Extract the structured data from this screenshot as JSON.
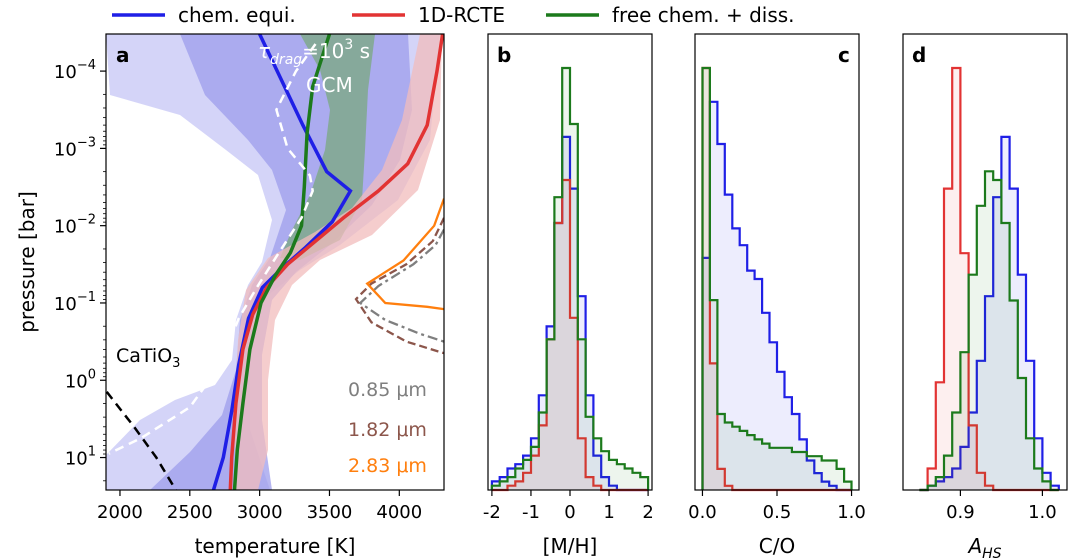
{
  "legend": {
    "location": "top-center, above panels",
    "entries": [
      {
        "label": "chem. equi.",
        "color": "#1f1fe6"
      },
      {
        "label": "1D-RCTE",
        "color": "#e23333"
      },
      {
        "label": "free chem. + diss.",
        "color": "#1c7a1c"
      }
    ]
  },
  "chart_data": [
    {
      "type": "line",
      "panel": "a",
      "xlabel": "temperature [K]",
      "ylabel": "pressure [bar]",
      "xlim": [
        1900,
        4320
      ],
      "ylim_log10": [
        1.42,
        -4.48
      ],
      "yscale": "log",
      "yinverted": true,
      "x_ticks": [
        2000,
        2500,
        3000,
        3500,
        4000
      ],
      "x_tick_labels": [
        "2000",
        "2500",
        "3000",
        "3500",
        "4000"
      ],
      "y_ticks_log10": [
        -4,
        -3,
        -2,
        -1,
        0,
        1
      ],
      "annotations": {
        "gcm_tau": "τ",
        "gcm_tau_sub": "drag",
        "gcm_tau_eq": "=10",
        "gcm_tau_exp": "3",
        "gcm_tau_unit": " s",
        "gcm": "GCM",
        "catio": "CaTiO",
        "catio_sub": "3"
      },
      "wavelength_labels": [
        {
          "label": "0.85 μm",
          "color": "#7f7f7f"
        },
        {
          "label": "1.82 μm",
          "color": "#8c564b"
        },
        {
          "label": "2.83 μm",
          "color": "#ff7f0e"
        }
      ],
      "series": [
        {
          "name": "chem. equi.",
          "color": "#1f1fe6",
          "points": [
            [
              3000,
              -4.48
            ],
            [
              3310,
              -3.3
            ],
            [
              3480,
              -2.7
            ],
            [
              3650,
              -2.45
            ],
            [
              3520,
              -2.05
            ],
            [
              3330,
              -1.72
            ],
            [
              3160,
              -1.45
            ],
            [
              3020,
              -1.2
            ],
            [
              2920,
              -0.8
            ],
            [
              2850,
              -0.2
            ],
            [
              2800,
              0.4
            ],
            [
              2740,
              1.0
            ],
            [
              2670,
              1.42
            ]
          ]
        },
        {
          "name": "1D-RCTE",
          "color": "#e23333",
          "points": [
            [
              4310,
              -4.48
            ],
            [
              4270,
              -4.0
            ],
            [
              4200,
              -3.3
            ],
            [
              4060,
              -2.8
            ],
            [
              3850,
              -2.45
            ],
            [
              3600,
              -2.1
            ],
            [
              3400,
              -1.8
            ],
            [
              3200,
              -1.5
            ],
            [
              3050,
              -1.2
            ],
            [
              2950,
              -0.85
            ],
            [
              2880,
              -0.4
            ],
            [
              2830,
              0.3
            ],
            [
              2800,
              1.0
            ],
            [
              2790,
              1.42
            ]
          ]
        },
        {
          "name": "free chem. + diss.",
          "color": "#1c7a1c",
          "points": [
            [
              3500,
              -4.48
            ],
            [
              3380,
              -3.8
            ],
            [
              3340,
              -3.2
            ],
            [
              3320,
              -2.5
            ],
            [
              3300,
              -2.0
            ],
            [
              3220,
              -1.65
            ],
            [
              3110,
              -1.35
            ],
            [
              3010,
              -1.0
            ],
            [
              2930,
              -0.4
            ],
            [
              2880,
              0.3
            ],
            [
              2840,
              0.9
            ],
            [
              2820,
              1.42
            ]
          ]
        },
        {
          "name": "",
          "color": "#ffffff",
          "points": [
            [
              3400,
              -4.35
            ],
            [
              3260,
              -4.0
            ],
            [
              3120,
              -3.5
            ],
            [
              3200,
              -3.0
            ],
            [
              3360,
              -2.65
            ],
            [
              3380,
              -2.45
            ],
            [
              3300,
              -2.1
            ],
            [
              3120,
              -1.6
            ],
            [
              2980,
              -1.2
            ],
            [
              2850,
              -0.8
            ],
            [
              2720,
              -0.2
            ],
            [
              2500,
              0.35
            ],
            [
              2150,
              0.75
            ],
            [
              1920,
              0.95
            ]
          ]
        },
        {
          "name": "",
          "color": "#000000",
          "points": [
            [
              1905,
              0.15
            ],
            [
              2100,
              0.6
            ],
            [
              2260,
              1.0
            ],
            [
              2400,
              1.42
            ]
          ]
        }
      ],
      "contribution_functions": [
        {
          "name": "0.85 μm",
          "color": "#7f7f7f",
          "points": [
            [
              4320,
              -1.95
            ],
            [
              4260,
              -1.75
            ],
            [
              4100,
              -1.5
            ],
            [
              3850,
              -1.22
            ],
            [
              3720,
              -1.0
            ],
            [
              3900,
              -0.78
            ],
            [
              4150,
              -0.6
            ],
            [
              4320,
              -0.5
            ]
          ]
        },
        {
          "name": "1.82 μm",
          "color": "#8c564b",
          "points": [
            [
              4320,
              -2.1
            ],
            [
              4240,
              -1.8
            ],
            [
              4050,
              -1.5
            ],
            [
              3800,
              -1.25
            ],
            [
              3690,
              -1.05
            ],
            [
              3800,
              -0.75
            ],
            [
              4050,
              -0.5
            ],
            [
              4320,
              -0.35
            ]
          ]
        },
        {
          "name": "2.83 μm",
          "color": "#ff7f0e",
          "points": [
            [
              4320,
              -2.35
            ],
            [
              4250,
              -2.0
            ],
            [
              4030,
              -1.55
            ],
            [
              3770,
              -1.25
            ],
            [
              3900,
              -1.0
            ],
            [
              4200,
              -0.95
            ],
            [
              4320,
              -0.92
            ]
          ]
        }
      ]
    },
    {
      "type": "histogram",
      "panel": "b",
      "xlabel": "[M/H]",
      "xlim": [
        -2.1,
        2.1
      ],
      "x_ticks": [
        -2,
        -1,
        0,
        1,
        2
      ],
      "x_tick_labels": [
        "-2",
        "-1",
        "0",
        "1",
        "2"
      ],
      "bin_edges": [
        -2.0,
        -1.8,
        -1.6,
        -1.4,
        -1.2,
        -1.0,
        -0.8,
        -0.6,
        -0.4,
        -0.2,
        0.0,
        0.2,
        0.4,
        0.6,
        0.8,
        1.0,
        1.2,
        1.4,
        1.6,
        1.8,
        2.0
      ],
      "series": [
        {
          "name": "chem. equi.",
          "color": "#1f1fe6",
          "values": [
            0.02,
            0.03,
            0.05,
            0.06,
            0.08,
            0.12,
            0.22,
            0.38,
            0.62,
            0.82,
            0.7,
            0.45,
            0.22,
            0.08,
            0.03,
            0.01,
            0,
            0,
            0,
            0
          ]
        },
        {
          "name": "1D-RCTE",
          "color": "#e23333",
          "values": [
            0,
            0,
            0.01,
            0.02,
            0.04,
            0.08,
            0.15,
            0.35,
            0.62,
            0.72,
            0.4,
            0.12,
            0.03,
            0.01,
            0,
            0,
            0,
            0,
            0,
            0
          ]
        },
        {
          "name": "free chem. + diss.",
          "color": "#1c7a1c",
          "values": [
            0.01,
            0.02,
            0.03,
            0.05,
            0.07,
            0.1,
            0.18,
            0.35,
            0.68,
            0.98,
            0.85,
            0.35,
            0.17,
            0.12,
            0.09,
            0.07,
            0.06,
            0.05,
            0.04,
            0.03
          ]
        }
      ]
    },
    {
      "type": "histogram",
      "panel": "c",
      "xlabel": "C/O",
      "xlim": [
        -0.05,
        1.05
      ],
      "x_ticks": [
        0.0,
        0.5,
        1.0
      ],
      "x_tick_labels": [
        "0.0",
        "0.5",
        "1.0"
      ],
      "bin_edges": [
        0.0,
        0.05,
        0.1,
        0.15,
        0.2,
        0.25,
        0.3,
        0.35,
        0.4,
        0.45,
        0.5,
        0.55,
        0.6,
        0.65,
        0.7,
        0.75,
        0.8,
        0.85,
        0.9,
        0.95,
        1.0
      ],
      "series": [
        {
          "name": "chem. equi.",
          "color": "#1f1fe6",
          "values": [
            0.55,
            0.92,
            0.82,
            0.7,
            0.62,
            0.58,
            0.52,
            0.5,
            0.42,
            0.35,
            0.28,
            0.22,
            0.18,
            0.12,
            0.07,
            0.04,
            0.02,
            0.01,
            0,
            0
          ]
        },
        {
          "name": "1D-RCTE",
          "color": "#e23333",
          "values": [
            1.0,
            0.3,
            0.05,
            0.01,
            0,
            0,
            0,
            0,
            0,
            0,
            0,
            0,
            0,
            0,
            0,
            0,
            0,
            0,
            0,
            0
          ]
        },
        {
          "name": "free chem. + diss.",
          "color": "#1c7a1c",
          "values": [
            1.0,
            0.45,
            0.18,
            0.16,
            0.15,
            0.14,
            0.13,
            0.12,
            0.11,
            0.1,
            0.1,
            0.1,
            0.09,
            0.09,
            0.08,
            0.08,
            0.07,
            0.07,
            0.05,
            0.02
          ]
        }
      ]
    },
    {
      "type": "histogram",
      "panel": "d",
      "xlabel": "A",
      "xlabel_sub": "HS",
      "xlim": [
        0.83,
        1.03
      ],
      "x_ticks": [
        0.9,
        1.0
      ],
      "x_tick_labels": [
        "0.9",
        "1.0"
      ],
      "bin_edges": [
        0.85,
        0.86,
        0.87,
        0.88,
        0.89,
        0.9,
        0.91,
        0.92,
        0.93,
        0.94,
        0.95,
        0.96,
        0.97,
        0.98,
        0.99,
        1.0,
        1.01,
        1.02
      ],
      "series": [
        {
          "name": "chem. equi.",
          "color": "#1f1fe6",
          "values": [
            0,
            0.01,
            0.02,
            0.03,
            0.05,
            0.1,
            0.18,
            0.3,
            0.45,
            0.68,
            0.82,
            0.7,
            0.5,
            0.3,
            0.12,
            0.04,
            0.01
          ]
        },
        {
          "name": "1D-RCTE",
          "color": "#e23333",
          "values": [
            0,
            0.05,
            0.25,
            0.7,
            0.98,
            0.55,
            0.15,
            0.04,
            0.01,
            0,
            0,
            0,
            0,
            0,
            0,
            0,
            0
          ]
        },
        {
          "name": "free chem. + diss.",
          "color": "#1c7a1c",
          "values": [
            0,
            0.01,
            0.03,
            0.08,
            0.18,
            0.32,
            0.5,
            0.66,
            0.74,
            0.72,
            0.62,
            0.44,
            0.26,
            0.12,
            0.05,
            0.02,
            0
          ]
        }
      ]
    }
  ],
  "panel_labels": [
    "a",
    "b",
    "c",
    "d"
  ],
  "axis_texts": {
    "a_ylabel": "pressure [bar]",
    "y_tick_base": "10",
    "y_tick_exps": [
      "−4",
      "−3",
      "−2",
      "−1",
      "0",
      "1"
    ]
  }
}
